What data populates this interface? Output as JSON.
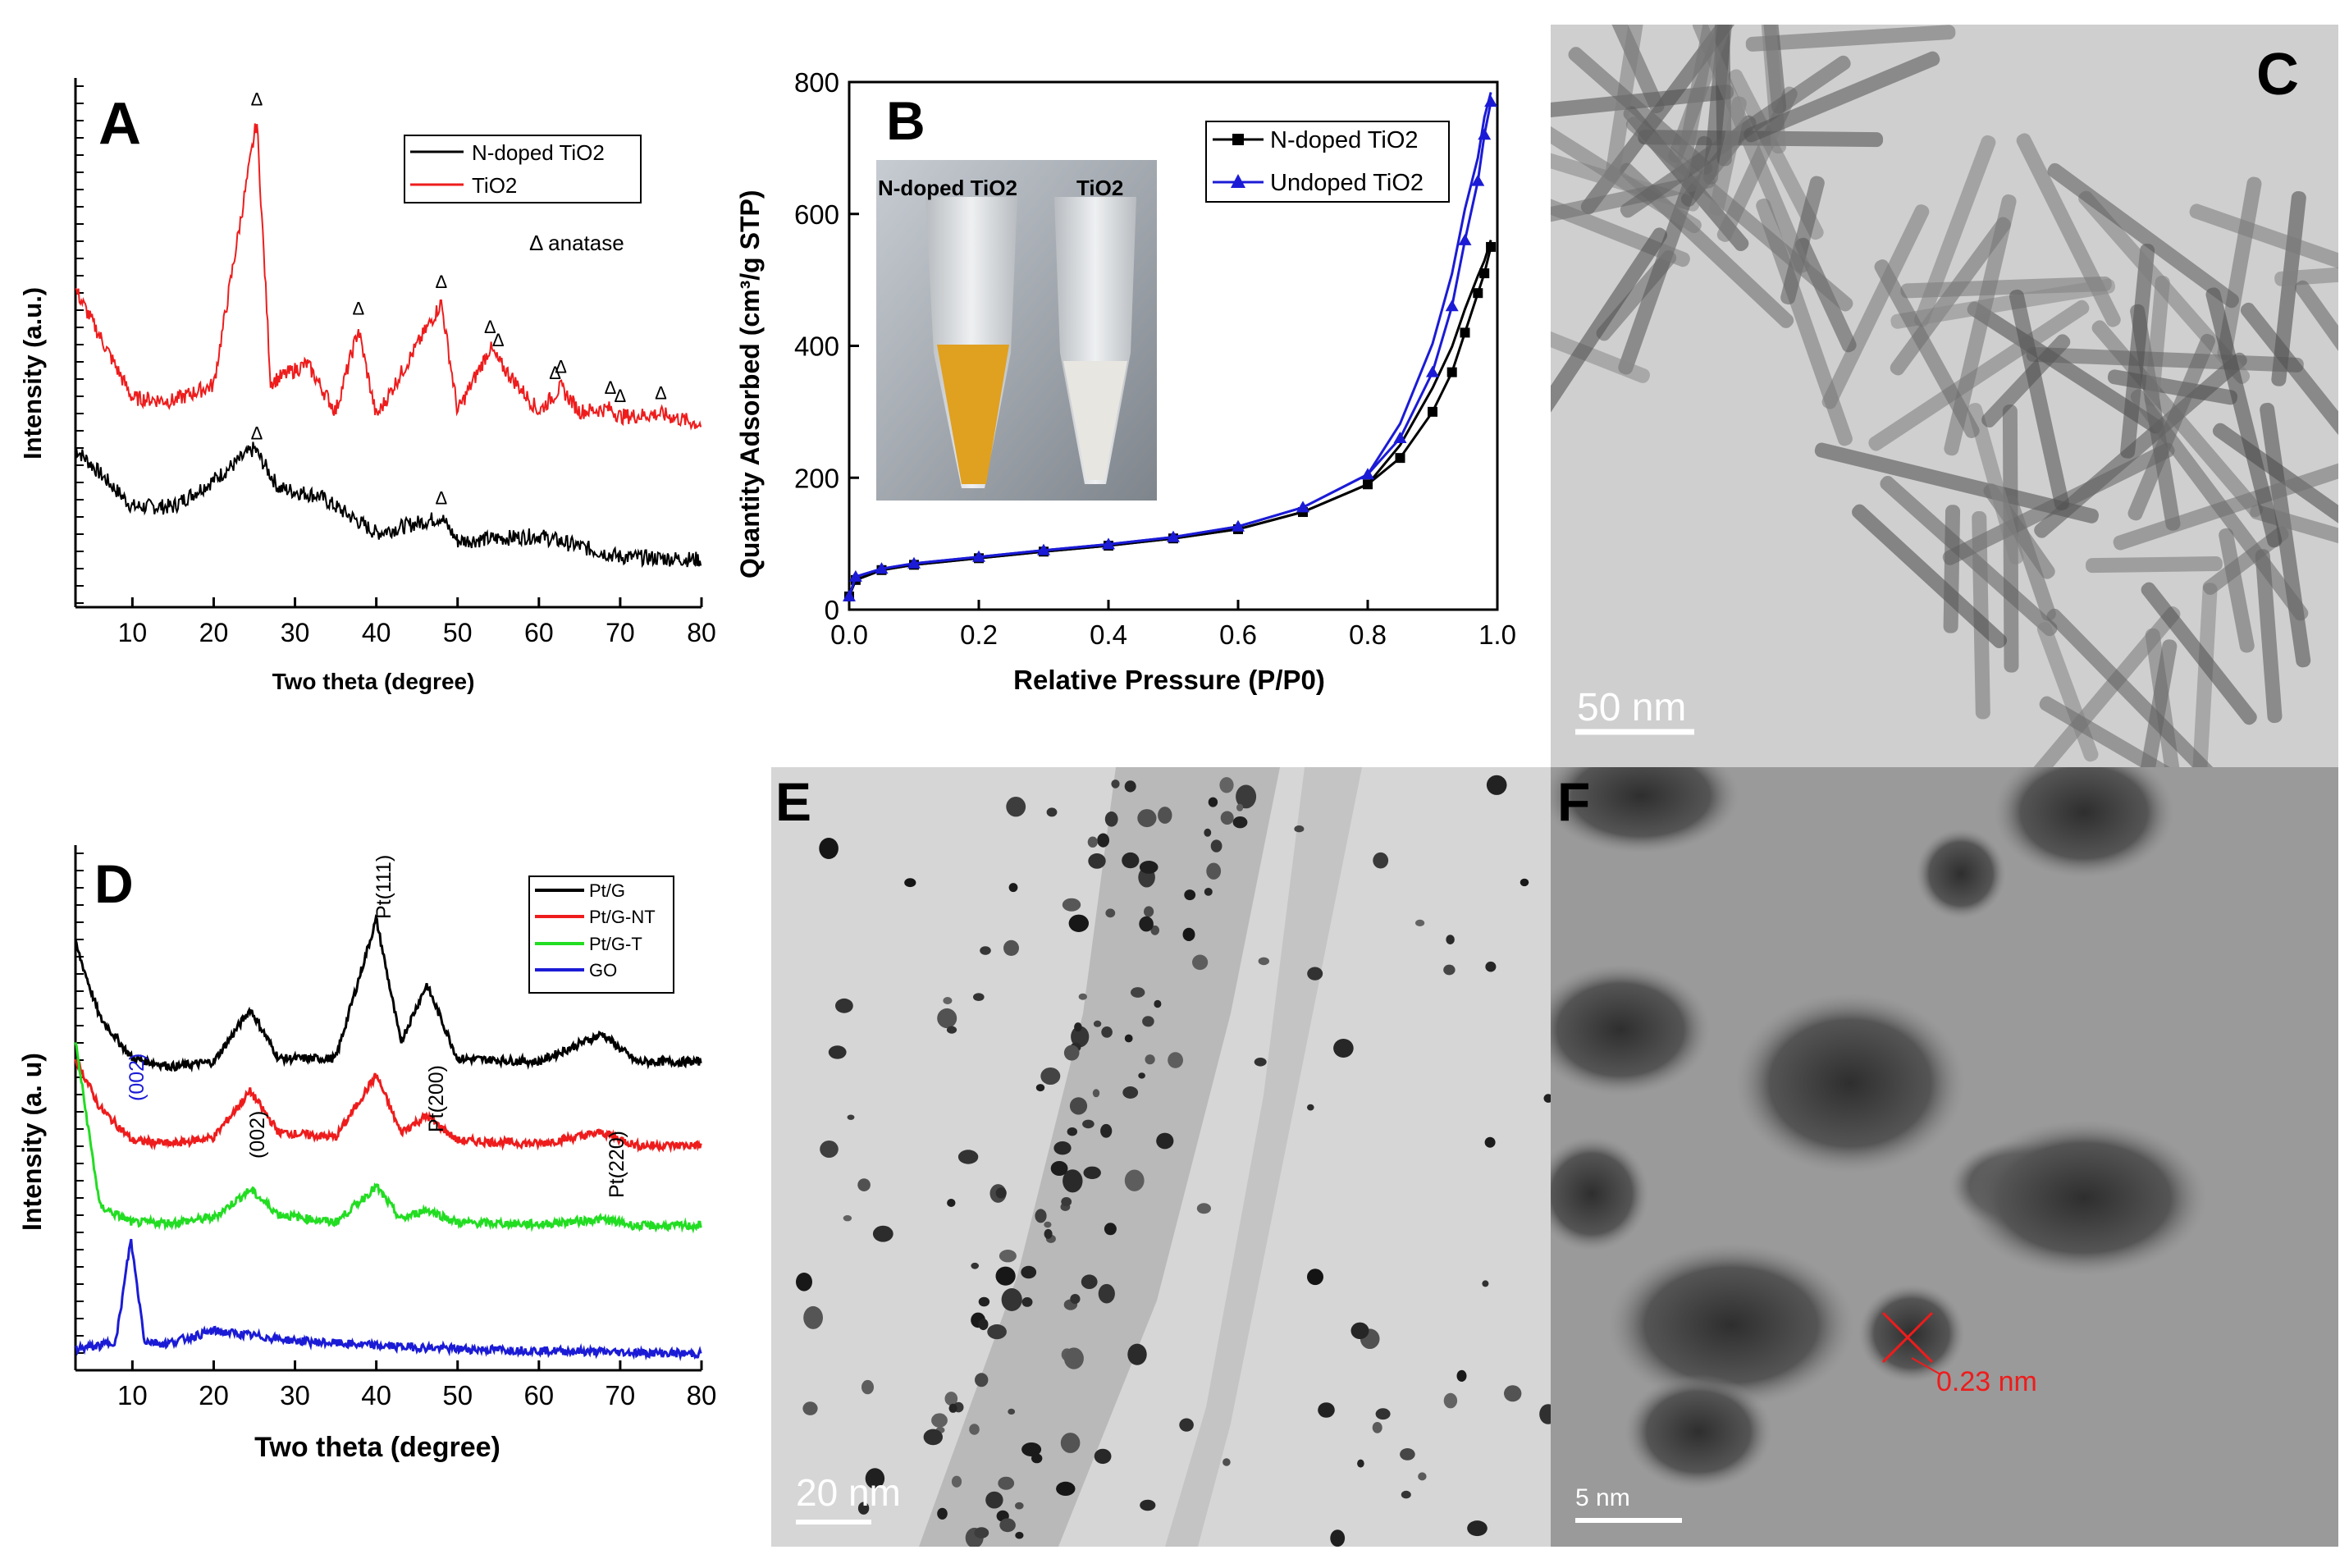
{
  "panels": {
    "A": {
      "letter": "A",
      "legend": [
        "N-doped TiO2",
        "TiO2"
      ],
      "anatase_label": "Δ  anatase",
      "triangle": "Δ",
      "ylabel": "Intensity (a.u.)",
      "xlabel": "Two theta (degree)",
      "xticks": [
        "10",
        "20",
        "30",
        "40",
        "50",
        "60",
        "70",
        "80"
      ]
    },
    "B": {
      "letter": "B",
      "legend": [
        "N-doped TiO2",
        "Undoped TiO2"
      ],
      "ylabel": "Quantity Adsorbed (cm³/g STP)",
      "xlabel": "Relative Pressure (P/P0)",
      "xticks": [
        "0.0",
        "0.2",
        "0.4",
        "0.6",
        "0.8",
        "1.0"
      ],
      "yticks": [
        "0",
        "200",
        "400",
        "600",
        "800"
      ],
      "photo_labels": [
        "N-doped TiO2",
        "TiO2"
      ]
    },
    "C": {
      "letter": "C",
      "scale": "50 nm"
    },
    "D": {
      "letter": "D",
      "legend": [
        "Pt/G",
        "Pt/G-NT",
        "Pt/G-T",
        "GO"
      ],
      "ylabel": "Intensity (a. u)",
      "xlabel": "Two theta (degree)",
      "xticks": [
        "10",
        "20",
        "30",
        "40",
        "50",
        "60",
        "70",
        "80"
      ],
      "peaks": [
        "(002)",
        "(002)",
        "Pt(111)",
        "Pt(200)",
        "Pt(220)"
      ]
    },
    "E": {
      "letter": "E",
      "scale": "20 nm"
    },
    "F": {
      "letter": "F",
      "scale": "5 nm",
      "d_spacing": "0.23 nm"
    }
  },
  "colors": {
    "black": "#000000",
    "red": "#ee1c1c",
    "green": "#22dd22",
    "blue": "#1b1bd6",
    "tem_light": "#c9c9c9",
    "hrtem": "#9a9a9a"
  },
  "chart_data": [
    {
      "type": "line",
      "panel": "A",
      "xlabel": "Two theta (degree)",
      "ylabel": "Intensity (a.u.)",
      "xlim": [
        3,
        80
      ],
      "series": [
        {
          "name": "N-doped TiO2",
          "x": [
            3,
            10,
            15,
            20,
            25,
            28,
            33,
            40,
            48,
            50,
            60,
            70,
            80
          ],
          "y": [
            60,
            38,
            38,
            48,
            60,
            45,
            42,
            28,
            34,
            25,
            27,
            19,
            18
          ]
        },
        {
          "name": "TiO2",
          "x": [
            3,
            10,
            15,
            20,
            25.3,
            27,
            31.5,
            35,
            37.8,
            40,
            48,
            50,
            54,
            55,
            60,
            62.7,
            65,
            68.8,
            70,
            75,
            80
          ],
          "y": [
            120,
            79,
            78,
            84,
            184,
            85,
            92,
            74,
            105,
            72,
            115,
            74,
            98,
            93,
            74,
            83,
            74,
            75,
            72,
            73,
            69
          ]
        }
      ]
    },
    {
      "type": "line",
      "panel": "B",
      "xlabel": "Relative Pressure (P/P0)",
      "ylabel": "Quantity Adsorbed (cm3/g STP)",
      "xlim": [
        0,
        1.0
      ],
      "ylim": [
        0,
        800
      ],
      "series": [
        {
          "name": "N-doped TiO2",
          "x": [
            0,
            0.01,
            0.05,
            0.1,
            0.2,
            0.3,
            0.4,
            0.5,
            0.6,
            0.7,
            0.8,
            0.85,
            0.9,
            0.93,
            0.95,
            0.97,
            0.98,
            0.99
          ],
          "y": [
            20,
            45,
            60,
            68,
            78,
            88,
            97,
            108,
            122,
            148,
            190,
            230,
            300,
            360,
            420,
            480,
            510,
            550
          ]
        },
        {
          "name": "Undoped TiO2",
          "x": [
            0,
            0.01,
            0.05,
            0.1,
            0.2,
            0.3,
            0.4,
            0.5,
            0.6,
            0.7,
            0.8,
            0.85,
            0.9,
            0.93,
            0.95,
            0.97,
            0.98,
            0.99
          ],
          "y": [
            20,
            50,
            62,
            70,
            80,
            90,
            99,
            110,
            126,
            155,
            205,
            260,
            360,
            460,
            560,
            650,
            720,
            770
          ]
        }
      ]
    },
    {
      "type": "line",
      "panel": "D",
      "xlabel": "Two theta (degree)",
      "ylabel": "Intensity (a. u)",
      "xlim": [
        3,
        80
      ],
      "series": [
        {
          "name": "Pt/G",
          "x": [
            3,
            6,
            10,
            15,
            20,
            24.5,
            28,
            35,
            40,
            43,
            46.2,
            50,
            60,
            67.8,
            72,
            80
          ],
          "y": [
            100,
            55,
            30,
            25,
            28,
            60,
            30,
            30,
            115,
            40,
            75,
            30,
            28,
            45,
            28,
            28
          ]
        },
        {
          "name": "Pt/G-NT",
          "x": [
            3,
            6,
            10,
            15,
            20,
            24.5,
            28,
            35,
            40,
            43,
            46.2,
            50,
            60,
            67.8,
            72,
            80
          ],
          "y": [
            70,
            40,
            20,
            18,
            22,
            50,
            25,
            22,
            60,
            25,
            35,
            20,
            18,
            25,
            17,
            17
          ]
        },
        {
          "name": "Pt/G-T",
          "x": [
            3,
            6,
            10,
            15,
            20,
            24.5,
            28,
            35,
            40,
            43,
            46.2,
            50,
            60,
            67.8,
            72,
            80
          ],
          "y": [
            120,
            20,
            10,
            10,
            13,
            30,
            15,
            10,
            32,
            12,
            18,
            10,
            9,
            12,
            8,
            8
          ]
        },
        {
          "name": "GO",
          "x": [
            3,
            6,
            8,
            9.8,
            11.5,
            14,
            20,
            30,
            40,
            50,
            60,
            70,
            80
          ],
          "y": [
            3,
            5,
            8,
            70,
            8,
            6,
            14,
            8,
            5,
            3,
            2,
            1,
            0
          ]
        }
      ]
    }
  ]
}
